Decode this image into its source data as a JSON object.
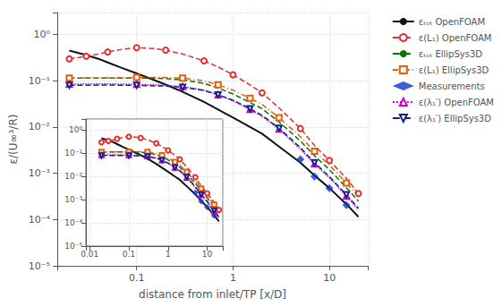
{
  "chart_data": [
    {
      "type": "line",
      "log": true,
      "xlabel": "distance from inlet/TP [x/D]",
      "ylabel": "ε/(U∞³/R)",
      "xlim": [
        0.015,
        25
      ],
      "ylim": [
        1e-05,
        3.0
      ],
      "xticks": [
        0.1,
        1,
        10
      ],
      "yticks": [
        {
          "value": 1e-05,
          "label": "10⁻⁵"
        },
        {
          "value": 0.0001,
          "label": "10⁻⁴"
        },
        {
          "value": 0.001,
          "label": "10⁻³"
        },
        {
          "value": 0.01,
          "label": "10⁻²"
        },
        {
          "value": 0.1,
          "label": "10⁻¹"
        },
        {
          "value": 1,
          "label": "10⁰"
        }
      ],
      "grid": true,
      "legend": "upper right",
      "series": [
        {
          "name": "εₜₒₜ OpenFOAM",
          "type": "line",
          "color": "#111111",
          "line_style": "solid",
          "x": [
            0.02,
            0.025,
            0.03,
            0.04,
            0.05,
            0.07,
            0.1,
            0.15,
            0.2,
            0.3,
            0.5,
            0.7,
            1.0,
            1.5,
            2.0,
            3.0,
            5.0,
            7.0,
            10.0,
            15.0,
            20.0
          ],
          "values": [
            0.45,
            0.4,
            0.36,
            0.3,
            0.25,
            0.19,
            0.145,
            0.105,
            0.083,
            0.058,
            0.035,
            0.024,
            0.016,
            0.01,
            0.0072,
            0.0038,
            0.0017,
            0.0009,
            0.00048,
            0.000215,
            0.000115
          ]
        },
        {
          "name": "ε(L₁) OpenFOAM",
          "type": "line",
          "color": "#e03030",
          "line_style": "dashed",
          "marker": "circle",
          "x": [
            0.02,
            0.025,
            0.03,
            0.04,
            0.05,
            0.07,
            0.1,
            0.15,
            0.2,
            0.3,
            0.5,
            0.7,
            1.0,
            1.5,
            2.0,
            3.0,
            5.0,
            7.0,
            10.0,
            15.0,
            20.0
          ],
          "values": [
            0.3,
            0.32,
            0.34,
            0.38,
            0.42,
            0.48,
            0.52,
            0.5,
            0.46,
            0.38,
            0.27,
            0.2,
            0.135,
            0.082,
            0.055,
            0.026,
            0.0093,
            0.004,
            0.0019,
            0.00078,
            0.000365
          ]
        },
        {
          "name": "εₜₒₜ EllipSys3D",
          "type": "line",
          "color": "#007700",
          "line_style": "dashed",
          "x": [
            0.02,
            0.05,
            0.1,
            0.2,
            0.3,
            0.5,
            0.7,
            1.0,
            1.5,
            2.0,
            3.0,
            5.0,
            7.0,
            10.0,
            15.0,
            20.0
          ],
          "values": [
            0.115,
            0.115,
            0.115,
            0.112,
            0.105,
            0.088,
            0.07,
            0.052,
            0.034,
            0.025,
            0.013,
            0.005,
            0.0024,
            0.0012,
            0.00049,
            0.00025
          ]
        },
        {
          "name": "ε(L₁) EllipSys3D",
          "type": "line",
          "color": "#e06010",
          "line_style": "dashdot",
          "marker": "square",
          "x": [
            0.02,
            0.05,
            0.1,
            0.2,
            0.3,
            0.5,
            0.7,
            1.0,
            1.5,
            2.0,
            3.0,
            5.0,
            7.0,
            10.0,
            15.0,
            20.0
          ],
          "values": [
            0.115,
            0.116,
            0.118,
            0.118,
            0.115,
            0.1,
            0.082,
            0.063,
            0.042,
            0.031,
            0.016,
            0.0062,
            0.003,
            0.0015,
            0.00062,
            0.00032
          ]
        },
        {
          "name": "Measurements",
          "type": "scatter",
          "color": "#1133cc",
          "marker": "diamond",
          "x": [
            5.0,
            7.0,
            10.0,
            15.0
          ],
          "values": [
            0.002,
            0.00085,
            0.00048,
            0.000205
          ]
        },
        {
          "name": "ε(λ₁′) OpenFOAM",
          "type": "line",
          "color": "#cc00cc",
          "line_style": "dotted",
          "marker": "triangle",
          "x": [
            0.02,
            0.05,
            0.1,
            0.2,
            0.3,
            0.5,
            0.7,
            1.0,
            1.5,
            2.0,
            3.0,
            5.0,
            7.0,
            10.0,
            15.0,
            20.0
          ],
          "values": [
            0.085,
            0.086,
            0.084,
            0.08,
            0.075,
            0.063,
            0.05,
            0.037,
            0.024,
            0.017,
            0.009,
            0.0033,
            0.0016,
            0.0008,
            0.000325,
            0.000165
          ]
        },
        {
          "name": "ε(λ₁′) EllipSys3D",
          "type": "line",
          "color": "#112288",
          "line_style": "dashed",
          "marker": "triangle-down",
          "x": [
            0.02,
            0.05,
            0.1,
            0.2,
            0.3,
            0.5,
            0.7,
            1.0,
            1.5,
            2.0,
            3.0,
            5.0,
            7.0,
            10.0,
            15.0,
            20.0
          ],
          "values": [
            0.08,
            0.081,
            0.08,
            0.077,
            0.073,
            0.062,
            0.05,
            0.038,
            0.025,
            0.018,
            0.0095,
            0.0036,
            0.0017,
            0.00085,
            0.000345,
            0.000175
          ]
        }
      ]
    },
    {
      "type": "line",
      "log": true,
      "xlim": [
        0.008,
        25
      ],
      "ylim": [
        1e-05,
        3.0
      ],
      "xticks": [
        0.01,
        0.1,
        1,
        10
      ],
      "yticks": [
        {
          "value": 1e-05,
          "label": "10⁻⁵"
        },
        {
          "value": 0.0001,
          "label": "10⁻⁴"
        },
        {
          "value": 0.001,
          "label": "10⁻³"
        },
        {
          "value": 0.01,
          "label": "10⁻²"
        },
        {
          "value": 0.1,
          "label": "10⁻¹"
        },
        {
          "value": 1,
          "label": "10⁰"
        }
      ],
      "grid": true,
      "series": [
        {
          "type": "line",
          "color": "#111111",
          "line_style": "solid",
          "x": [
            0.02,
            0.025,
            0.03,
            0.04,
            0.05,
            0.07,
            0.1,
            0.15,
            0.2,
            0.3,
            0.5,
            0.7,
            1.0,
            1.5,
            2.0,
            3.0,
            5.0,
            7.0,
            10.0,
            15.0,
            20.0
          ],
          "values": [
            0.45,
            0.4,
            0.36,
            0.3,
            0.25,
            0.19,
            0.145,
            0.105,
            0.083,
            0.058,
            0.035,
            0.024,
            0.016,
            0.01,
            0.0072,
            0.0038,
            0.0017,
            0.0009,
            0.00048,
            0.000215,
            0.000115
          ]
        },
        {
          "type": "line",
          "color": "#e03030",
          "line_style": "dashed",
          "marker": "circle",
          "x": [
            0.02,
            0.025,
            0.03,
            0.04,
            0.05,
            0.07,
            0.1,
            0.15,
            0.2,
            0.3,
            0.5,
            0.7,
            1.0,
            1.5,
            2.0,
            3.0,
            5.0,
            7.0,
            10.0,
            15.0,
            20.0
          ],
          "values": [
            0.3,
            0.32,
            0.34,
            0.38,
            0.42,
            0.48,
            0.52,
            0.5,
            0.46,
            0.38,
            0.27,
            0.2,
            0.135,
            0.082,
            0.055,
            0.026,
            0.0093,
            0.004,
            0.0019,
            0.00078,
            0.000365
          ]
        },
        {
          "type": "line",
          "color": "#007700",
          "line_style": "dashed",
          "x": [
            0.02,
            0.05,
            0.1,
            0.2,
            0.3,
            0.5,
            0.7,
            1.0,
            1.5,
            2.0,
            3.0,
            5.0,
            7.0,
            10.0,
            15.0,
            20.0
          ],
          "values": [
            0.115,
            0.115,
            0.115,
            0.112,
            0.105,
            0.088,
            0.07,
            0.052,
            0.034,
            0.025,
            0.013,
            0.005,
            0.0024,
            0.0012,
            0.00049,
            0.00025
          ]
        },
        {
          "type": "line",
          "color": "#e06010",
          "line_style": "dashdot",
          "marker": "square",
          "x": [
            0.02,
            0.05,
            0.1,
            0.2,
            0.3,
            0.5,
            0.7,
            1.0,
            1.5,
            2.0,
            3.0,
            5.0,
            7.0,
            10.0,
            15.0,
            20.0
          ],
          "values": [
            0.115,
            0.116,
            0.118,
            0.118,
            0.115,
            0.1,
            0.082,
            0.063,
            0.042,
            0.031,
            0.016,
            0.0062,
            0.003,
            0.0015,
            0.00062,
            0.00032
          ]
        },
        {
          "type": "scatter",
          "color": "#1133cc",
          "marker": "diamond",
          "x": [
            5.0,
            7.0,
            10.0,
            15.0
          ],
          "values": [
            0.002,
            0.00085,
            0.00048,
            0.000205
          ]
        },
        {
          "type": "line",
          "color": "#cc00cc",
          "line_style": "dotted",
          "marker": "triangle",
          "x": [
            0.02,
            0.05,
            0.1,
            0.2,
            0.3,
            0.5,
            0.7,
            1.0,
            1.5,
            2.0,
            3.0,
            5.0,
            7.0,
            10.0,
            15.0,
            20.0
          ],
          "values": [
            0.085,
            0.086,
            0.084,
            0.08,
            0.075,
            0.063,
            0.05,
            0.037,
            0.024,
            0.017,
            0.009,
            0.0033,
            0.0016,
            0.0008,
            0.000325,
            0.000165
          ]
        },
        {
          "type": "line",
          "color": "#112288",
          "line_style": "dashed",
          "marker": "triangle-down",
          "x": [
            0.02,
            0.05,
            0.1,
            0.2,
            0.3,
            0.5,
            0.7,
            1.0,
            1.5,
            2.0,
            3.0,
            5.0,
            7.0,
            10.0,
            15.0,
            20.0
          ],
          "values": [
            0.08,
            0.081,
            0.08,
            0.077,
            0.073,
            0.062,
            0.05,
            0.038,
            0.025,
            0.018,
            0.0095,
            0.0036,
            0.0017,
            0.00085,
            0.000345,
            0.000175
          ]
        }
      ]
    }
  ]
}
